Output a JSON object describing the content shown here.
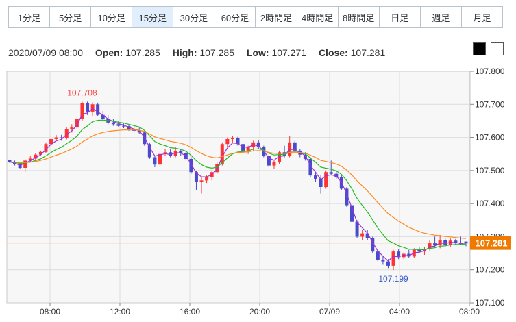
{
  "tabs": [
    "1分足",
    "5分足",
    "10分足",
    "15分足",
    "30分足",
    "60分足",
    "2時間足",
    "4時間足",
    "8時間足",
    "日足",
    "週足",
    "月足"
  ],
  "active_tab": "15分足",
  "info": {
    "datetime": "2020/07/09 08:00",
    "open_label": "Open:",
    "open": "107.285",
    "high_label": "High:",
    "high": "107.285",
    "low_label": "Low:",
    "low": "107.271",
    "close_label": "Close:",
    "close": "107.281"
  },
  "theme_buttons": {
    "dark_color": "#000000",
    "light_color": "#ffffff"
  },
  "chart_data": {
    "type": "candlestick",
    "y_ticks": [
      "107.800",
      "107.700",
      "107.600",
      "107.500",
      "107.400",
      "107.300",
      "107.200",
      "107.100"
    ],
    "ylim": [
      107.1,
      107.8
    ],
    "x_ticks": [
      "08:00",
      "12:00",
      "16:00",
      "20:00",
      "07/09",
      "04:00",
      "08:00"
    ],
    "high_annotation": "107.708",
    "low_annotation": "107.199",
    "current_price": "107.281",
    "grid": true,
    "colors": {
      "up": "#ff3333",
      "down": "#4a4acc",
      "ma_short": "#9b30d9",
      "ma_mid": "#22bb22",
      "ma_long": "#ff8a1e",
      "price_line": "#f07a00"
    },
    "candles": [
      [
        107.531,
        107.533,
        107.523,
        107.526
      ],
      [
        107.526,
        107.53,
        107.515,
        107.519
      ],
      [
        107.519,
        107.523,
        107.505,
        107.508
      ],
      [
        107.508,
        107.534,
        107.496,
        107.53
      ],
      [
        107.53,
        107.544,
        107.525,
        107.536
      ],
      [
        107.536,
        107.553,
        107.53,
        107.548
      ],
      [
        107.548,
        107.56,
        107.545,
        107.556
      ],
      [
        107.556,
        107.585,
        107.552,
        107.58
      ],
      [
        107.58,
        107.6,
        107.575,
        107.595
      ],
      [
        107.595,
        107.607,
        107.59,
        107.6
      ],
      [
        107.6,
        107.608,
        107.59,
        107.598
      ],
      [
        107.598,
        107.63,
        107.594,
        107.625
      ],
      [
        107.625,
        107.64,
        107.615,
        107.63
      ],
      [
        107.63,
        107.66,
        107.625,
        107.655
      ],
      [
        107.655,
        107.708,
        107.65,
        107.703
      ],
      [
        107.703,
        107.708,
        107.668,
        107.678
      ],
      [
        107.678,
        107.706,
        107.665,
        107.7
      ],
      [
        107.7,
        107.705,
        107.665,
        107.668
      ],
      [
        107.668,
        107.68,
        107.65,
        107.656
      ],
      [
        107.656,
        107.667,
        107.64,
        107.645
      ],
      [
        107.645,
        107.655,
        107.635,
        107.64
      ],
      [
        107.64,
        107.65,
        107.63,
        107.635
      ],
      [
        107.635,
        107.642,
        107.628,
        107.634
      ],
      [
        107.634,
        107.64,
        107.62,
        107.624
      ],
      [
        107.624,
        107.635,
        107.615,
        107.62
      ],
      [
        107.62,
        107.63,
        107.61,
        107.615
      ],
      [
        107.615,
        107.62,
        107.575,
        107.58
      ],
      [
        107.58,
        107.585,
        107.535,
        107.54
      ],
      [
        107.54,
        107.545,
        107.51,
        107.518
      ],
      [
        107.518,
        107.56,
        107.515,
        107.55
      ],
      [
        107.55,
        107.565,
        107.545,
        107.555
      ],
      [
        107.555,
        107.565,
        107.54,
        107.545
      ],
      [
        107.545,
        107.57,
        107.54,
        107.56
      ],
      [
        107.56,
        107.565,
        107.545,
        107.552
      ],
      [
        107.552,
        107.558,
        107.53,
        107.535
      ],
      [
        107.535,
        107.54,
        107.49,
        107.495
      ],
      [
        107.495,
        107.5,
        107.44,
        107.465
      ],
      [
        107.465,
        107.48,
        107.43,
        107.47
      ],
      [
        107.47,
        107.485,
        107.462,
        107.48
      ],
      [
        107.48,
        107.5,
        107.47,
        107.495
      ],
      [
        107.495,
        107.525,
        107.49,
        107.52
      ],
      [
        107.52,
        107.585,
        107.515,
        107.58
      ],
      [
        107.58,
        107.6,
        107.57,
        107.595
      ],
      [
        107.595,
        107.605,
        107.585,
        107.598
      ],
      [
        107.598,
        107.602,
        107.575,
        107.58
      ],
      [
        107.58,
        107.585,
        107.555,
        107.56
      ],
      [
        107.56,
        107.575,
        107.55,
        107.57
      ],
      [
        107.57,
        107.59,
        107.56,
        107.585
      ],
      [
        107.585,
        107.592,
        107.565,
        107.57
      ],
      [
        107.57,
        107.575,
        107.54,
        107.545
      ],
      [
        107.545,
        107.55,
        107.51,
        107.515
      ],
      [
        107.515,
        107.53,
        107.505,
        107.525
      ],
      [
        107.525,
        107.56,
        107.52,
        107.555
      ],
      [
        107.555,
        107.575,
        107.54,
        107.545
      ],
      [
        107.545,
        107.605,
        107.54,
        107.585
      ],
      [
        107.585,
        107.59,
        107.555,
        107.56
      ],
      [
        107.56,
        107.565,
        107.54,
        107.548
      ],
      [
        107.548,
        107.555,
        107.53,
        107.535
      ],
      [
        107.535,
        107.54,
        107.48,
        107.485
      ],
      [
        107.485,
        107.495,
        107.465,
        107.475
      ],
      [
        107.475,
        107.485,
        107.43,
        107.45
      ],
      [
        107.45,
        107.5,
        107.445,
        107.495
      ],
      [
        107.495,
        107.53,
        107.485,
        107.49
      ],
      [
        107.49,
        107.5,
        107.475,
        107.48
      ],
      [
        107.48,
        107.485,
        107.44,
        107.445
      ],
      [
        107.445,
        107.45,
        107.39,
        107.395
      ],
      [
        107.395,
        107.4,
        107.34,
        107.345
      ],
      [
        107.345,
        107.35,
        107.295,
        107.3
      ],
      [
        107.3,
        107.32,
        107.29,
        107.31
      ],
      [
        107.31,
        107.32,
        107.29,
        107.295
      ],
      [
        107.295,
        107.3,
        107.25,
        107.255
      ],
      [
        107.255,
        107.262,
        107.225,
        107.23
      ],
      [
        107.23,
        107.24,
        107.215,
        107.225
      ],
      [
        107.225,
        107.232,
        107.205,
        107.212
      ],
      [
        107.212,
        107.26,
        107.199,
        107.255
      ],
      [
        107.255,
        107.262,
        107.232,
        107.238
      ],
      [
        107.238,
        107.252,
        107.232,
        107.248
      ],
      [
        107.248,
        107.26,
        107.235,
        107.24
      ],
      [
        107.24,
        107.265,
        107.236,
        107.26
      ],
      [
        107.26,
        107.27,
        107.25,
        107.255
      ],
      [
        107.255,
        107.268,
        107.245,
        107.262
      ],
      [
        107.262,
        107.29,
        107.258,
        107.28
      ],
      [
        107.28,
        107.3,
        107.27,
        107.275
      ],
      [
        107.275,
        107.305,
        107.265,
        107.29
      ],
      [
        107.29,
        107.295,
        107.27,
        107.276
      ],
      [
        107.276,
        107.295,
        107.27,
        107.288
      ],
      [
        107.288,
        107.293,
        107.275,
        107.28
      ],
      [
        107.28,
        107.3,
        107.275,
        107.278
      ],
      [
        107.285,
        107.285,
        107.271,
        107.281
      ]
    ]
  }
}
